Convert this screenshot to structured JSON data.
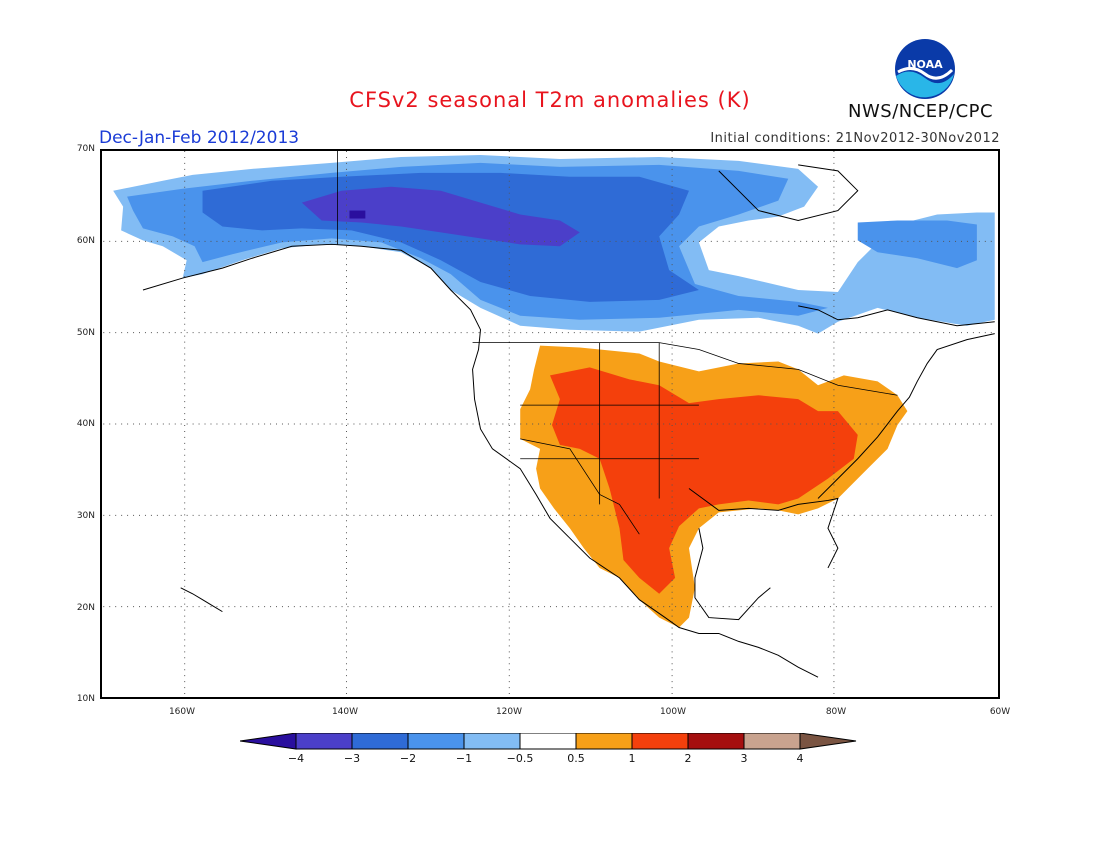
{
  "header": {
    "title": "CFSv2 seasonal T2m anomalies (K)",
    "season": "Dec-Jan-Feb 2012/2013",
    "init_conditions": "Initial conditions: 21Nov2012-30Nov2012",
    "agency": "NWS/NCEP/CPC",
    "logo_text": "NOAA"
  },
  "map": {
    "lat_labels": [
      "70N",
      "60N",
      "50N",
      "40N",
      "30N",
      "20N",
      "10N"
    ],
    "lon_labels": [
      "160W",
      "140W",
      "120W",
      "100W",
      "80W",
      "60W"
    ],
    "extent": {
      "lon": [
        -170,
        -60
      ],
      "lat": [
        10,
        70
      ]
    },
    "grid": "dotted"
  },
  "colorbar": {
    "labels": [
      "−4",
      "−3",
      "−2",
      "−1",
      "−0.5",
      "0.5",
      "1",
      "2",
      "3",
      "4"
    ],
    "colors": [
      "#2a0f9e",
      "#4b3fc9",
      "#2f6bd6",
      "#4a93ec",
      "#82bcf4",
      "#ffffff",
      "#f7a018",
      "#f4400c",
      "#a50f0f",
      "#c9a38f",
      "#7a5442"
    ]
  }
}
